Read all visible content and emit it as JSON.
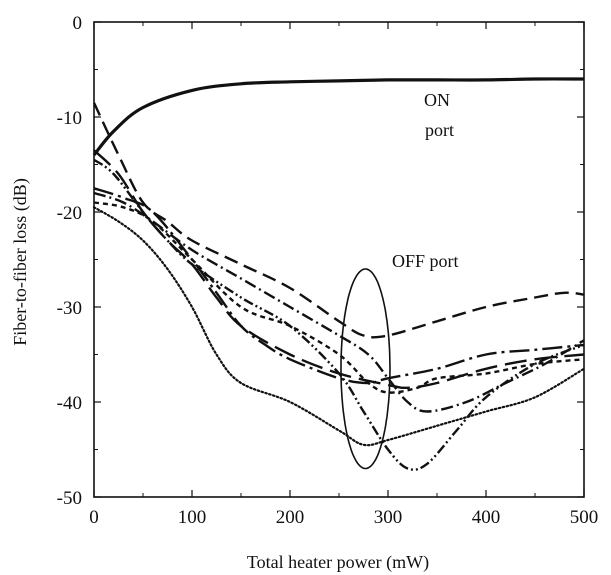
{
  "chart_data": {
    "type": "line",
    "xlabel": "Total heater power (mW)",
    "ylabel": "Fiber-to-fiber loss (dB)",
    "xlim": [
      0,
      500
    ],
    "ylim": [
      -50,
      0
    ],
    "xticks": [
      "0",
      "100",
      "200",
      "300",
      "400",
      "500"
    ],
    "yticks": [
      "0",
      "-10",
      "-20",
      "-30",
      "-40",
      "-50"
    ],
    "annotations": {
      "on_line1": "ON",
      "on_line2": "port",
      "off": "OFF port"
    },
    "series": [
      {
        "style": "solid",
        "x": [
          0,
          20,
          50,
          100,
          150,
          200,
          250,
          300,
          350,
          400,
          450,
          500
        ],
        "y": [
          -14,
          -11.5,
          -9,
          -7.2,
          -6.5,
          -6.3,
          -6.2,
          -6.1,
          -6.1,
          -6.1,
          -6.0,
          -6.0
        ]
      },
      {
        "style": "dashed",
        "x": [
          0,
          25,
          50,
          75,
          100,
          150,
          200,
          250,
          275,
          300,
          350,
          400,
          450,
          480,
          500
        ],
        "y": [
          -8.5,
          -14,
          -19,
          -21,
          -23,
          -25.5,
          -28,
          -31.5,
          -33,
          -33,
          -31.5,
          -30,
          -29,
          -28.5,
          -28.7
        ]
      },
      {
        "style": "long-dash",
        "x": [
          0,
          25,
          50,
          75,
          100,
          125,
          150,
          200,
          250,
          300,
          320,
          350,
          400,
          450,
          500
        ],
        "y": [
          -13.5,
          -16,
          -20,
          -23,
          -25.5,
          -29,
          -32,
          -35,
          -37,
          -38.2,
          -38.5,
          -38,
          -36.5,
          -35.5,
          -35
        ]
      },
      {
        "style": "dash-dot",
        "x": [
          0,
          30,
          60,
          100,
          150,
          200,
          250,
          280,
          300,
          320,
          340,
          380,
          420,
          460,
          500
        ],
        "y": [
          -18,
          -19,
          -21,
          -24,
          -27,
          -30,
          -33,
          -35,
          -37.5,
          -40,
          -41,
          -40,
          -38,
          -36,
          -33.5
        ]
      },
      {
        "style": "dash-dot-dot",
        "x": [
          0,
          20,
          50,
          75,
          100,
          150,
          200,
          250,
          275,
          300,
          320,
          340,
          370,
          400,
          450,
          500
        ],
        "y": [
          -14.5,
          -16,
          -20,
          -23,
          -25.5,
          -29,
          -32,
          -37,
          -41,
          -45,
          -47,
          -46.5,
          -43,
          -39.5,
          -36,
          -34
        ]
      },
      {
        "style": "long-dash-dot",
        "x": [
          0,
          30,
          60,
          100,
          125,
          150,
          175,
          200,
          250,
          280,
          300,
          350,
          400,
          450,
          500
        ],
        "y": [
          -17.5,
          -18.5,
          -20,
          -25,
          -28.5,
          -32,
          -34,
          -35.5,
          -37.5,
          -38,
          -37.5,
          -36.5,
          -35,
          -34.5,
          -34
        ]
      },
      {
        "style": "short-dash",
        "x": [
          0,
          30,
          60,
          100,
          150,
          200,
          250,
          280,
          300,
          330,
          350,
          400,
          450,
          500
        ],
        "y": [
          -19,
          -19.5,
          -21,
          -25,
          -30,
          -32,
          -35,
          -38,
          -39,
          -38.5,
          -37.5,
          -37,
          -36,
          -35.5
        ]
      },
      {
        "style": "dotted",
        "x": [
          0,
          25,
          50,
          75,
          100,
          125,
          150,
          200,
          250,
          275,
          300,
          350,
          400,
          450,
          500
        ],
        "y": [
          -19.5,
          -21,
          -23,
          -26,
          -30,
          -35,
          -38,
          -40,
          -43,
          -44.5,
          -44,
          -42.5,
          -41,
          -39.5,
          -36.5
        ]
      }
    ],
    "ellipse": {
      "cx": 277,
      "cy": -36.5,
      "rx": 25,
      "ry": 10.5,
      "tail": [
        [
          259,
          -29
        ],
        [
          257,
          -30.5
        ]
      ]
    }
  }
}
